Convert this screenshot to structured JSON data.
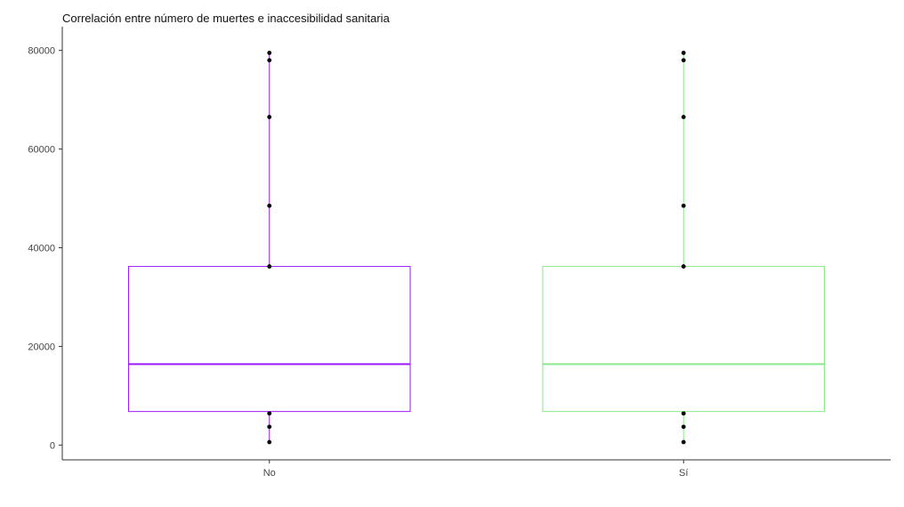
{
  "chart_data": {
    "type": "boxplot",
    "title": "Correlación entre número de muertes e inaccesibilidad sanitaria",
    "xlabel": "",
    "ylabel": "",
    "ylim": [
      -3000,
      83000
    ],
    "yticks": [
      0,
      20000,
      40000,
      60000,
      80000
    ],
    "ytick_labels": [
      "0",
      "20000",
      "40000",
      "60000",
      "80000"
    ],
    "categories": [
      "No",
      "Sí"
    ],
    "grid": false,
    "legend": "none",
    "boxes": [
      {
        "category": "No",
        "color": "#9a1aff",
        "q1": 6800,
        "median": 16400,
        "q3": 36200,
        "whisker_low": 600,
        "whisker_high": 79500,
        "points": [
          79500,
          78000,
          66500,
          48500,
          36200,
          6400,
          3700,
          600
        ]
      },
      {
        "category": "Sí",
        "color": "#8ce88c",
        "q1": 6800,
        "median": 16400,
        "q3": 36200,
        "whisker_low": 600,
        "whisker_high": 79500,
        "points": [
          79500,
          78000,
          66500,
          48500,
          36200,
          6400,
          3700,
          600
        ]
      }
    ]
  }
}
